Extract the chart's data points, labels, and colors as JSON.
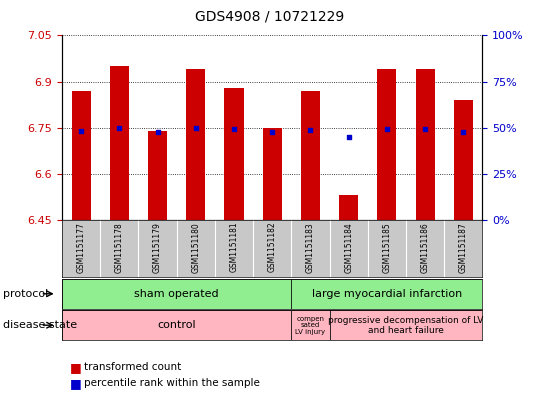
{
  "title": "GDS4908 / 10721229",
  "samples": [
    "GSM1151177",
    "GSM1151178",
    "GSM1151179",
    "GSM1151180",
    "GSM1151181",
    "GSM1151182",
    "GSM1151183",
    "GSM1151184",
    "GSM1151185",
    "GSM1151186",
    "GSM1151187"
  ],
  "bar_values": [
    6.87,
    6.95,
    6.74,
    6.94,
    6.88,
    6.75,
    6.87,
    6.53,
    6.94,
    6.94,
    6.84
  ],
  "bar_bottom": 6.45,
  "blue_dots": [
    6.738,
    6.75,
    6.737,
    6.75,
    6.745,
    6.737,
    6.742,
    6.72,
    6.745,
    6.745,
    6.737
  ],
  "ymin": 6.45,
  "ymax": 7.05,
  "yticks_left": [
    6.45,
    6.6,
    6.75,
    6.9,
    7.05
  ],
  "yticks_right_vals": [
    0,
    25,
    50,
    75,
    100
  ],
  "bar_color": "#CC0000",
  "dot_color": "#0000CC",
  "left_tick_color": "#CC0000",
  "right_tick_color": "#0000CC",
  "sham_color": "#90EE90",
  "large_color": "#90EE90",
  "control_color": "#FFB6C1",
  "comp_color": "#FFB6C1",
  "prog_color": "#FFB6C1",
  "label_bg_color": "#C8C8C8"
}
